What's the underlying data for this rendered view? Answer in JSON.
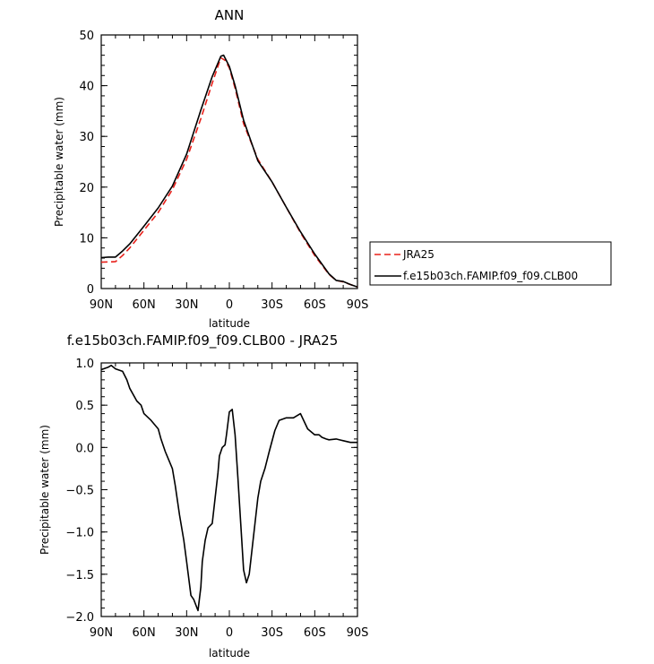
{
  "chart_data": [
    {
      "type": "line",
      "title": "ANN",
      "xlabel": "latitude",
      "ylabel": "Precipitable water (mm)",
      "x_tick_labels": [
        "90N",
        "60N",
        "30N",
        "0",
        "30S",
        "60S",
        "90S"
      ],
      "x_tick_values": [
        90,
        60,
        30,
        0,
        -30,
        -60,
        -90
      ],
      "xlim": [
        90,
        -90
      ],
      "ylim": [
        0,
        50
      ],
      "y_ticks": [
        0,
        10,
        20,
        30,
        40,
        50
      ],
      "grid": false,
      "legend_position": "right",
      "series": [
        {
          "name": "JRA25",
          "color": "#e8201a",
          "dash": "dashed",
          "x": [
            90,
            80,
            75,
            70,
            60,
            50,
            40,
            30,
            20,
            12,
            6,
            3,
            0,
            -4,
            -10,
            -20,
            -30,
            -40,
            -50,
            -60,
            -70,
            -75,
            -80,
            -85,
            -90
          ],
          "y": [
            5.2,
            5.3,
            6.5,
            8.0,
            11.5,
            15.0,
            19.5,
            25.5,
            33.5,
            40.5,
            45.5,
            45.0,
            43.5,
            39.5,
            32.5,
            25.5,
            21.0,
            16.0,
            11.0,
            6.5,
            2.8,
            1.6,
            1.3,
            0.8,
            0.3
          ]
        },
        {
          "name": "f.e15b03ch.FAMIP.f09_f09.CLB00",
          "color": "#000000",
          "dash": "solid",
          "x": [
            90,
            85,
            80,
            75,
            70,
            60,
            50,
            40,
            30,
            20,
            12,
            6,
            4,
            0,
            -4,
            -10,
            -20,
            -30,
            -40,
            -50,
            -60,
            -70,
            -75,
            -80,
            -85,
            -90
          ],
          "y": [
            6.1,
            6.2,
            6.2,
            7.4,
            8.8,
            12.3,
            15.9,
            20.2,
            26.5,
            35.2,
            41.8,
            45.8,
            46.0,
            43.8,
            40.0,
            33.2,
            25.2,
            21.0,
            16.0,
            11.2,
            6.8,
            2.9,
            1.6,
            1.4,
            0.8,
            0.3
          ]
        }
      ]
    },
    {
      "type": "line",
      "title": "f.e15b03ch.FAMIP.f09_f09.CLB00 - JRA25",
      "xlabel": "latitude",
      "ylabel": "Precipitable water (mm)",
      "x_tick_labels": [
        "90N",
        "60N",
        "30N",
        "0",
        "30S",
        "60S",
        "90S"
      ],
      "x_tick_values": [
        90,
        60,
        30,
        0,
        -30,
        -60,
        -90
      ],
      "xlim": [
        90,
        -90
      ],
      "ylim": [
        -2.0,
        1.0
      ],
      "y_ticks": [
        -2.0,
        -1.5,
        -1.0,
        -0.5,
        0.0,
        0.5,
        1.0
      ],
      "y_tick_labels": [
        "−2.0",
        "−1.5",
        "−1.0",
        "−0.5",
        "0.0",
        "0.5",
        "1.0"
      ],
      "grid": false,
      "series": [
        {
          "color": "#000000",
          "dash": "solid",
          "x": [
            90,
            85,
            83,
            80,
            75,
            72,
            70,
            65,
            62,
            60,
            55,
            50,
            48,
            45,
            40,
            38,
            35,
            32,
            30,
            27,
            25,
            22,
            20,
            19,
            17,
            15,
            12,
            10,
            8,
            7,
            5,
            3,
            2,
            0,
            -2,
            -4,
            -6,
            -8,
            -10,
            -12,
            -14,
            -16,
            -18,
            -20,
            -22,
            -25,
            -28,
            -32,
            -35,
            -40,
            -45,
            -50,
            -55,
            -60,
            -63,
            -65,
            -68,
            -70,
            -75,
            -80,
            -85,
            -90
          ],
          "y": [
            0.92,
            0.95,
            0.97,
            0.93,
            0.9,
            0.8,
            0.7,
            0.55,
            0.5,
            0.4,
            0.32,
            0.22,
            0.1,
            -0.05,
            -0.25,
            -0.45,
            -0.8,
            -1.1,
            -1.35,
            -1.75,
            -1.8,
            -1.93,
            -1.65,
            -1.35,
            -1.1,
            -0.95,
            -0.9,
            -0.6,
            -0.3,
            -0.1,
            0.0,
            0.03,
            0.15,
            0.42,
            0.45,
            0.15,
            -0.35,
            -0.9,
            -1.45,
            -1.6,
            -1.5,
            -1.2,
            -0.9,
            -0.6,
            -0.4,
            -0.25,
            -0.05,
            0.2,
            0.32,
            0.35,
            0.35,
            0.4,
            0.22,
            0.15,
            0.15,
            0.12,
            0.1,
            0.09,
            0.1,
            0.08,
            0.06,
            0.06
          ]
        }
      ]
    }
  ]
}
